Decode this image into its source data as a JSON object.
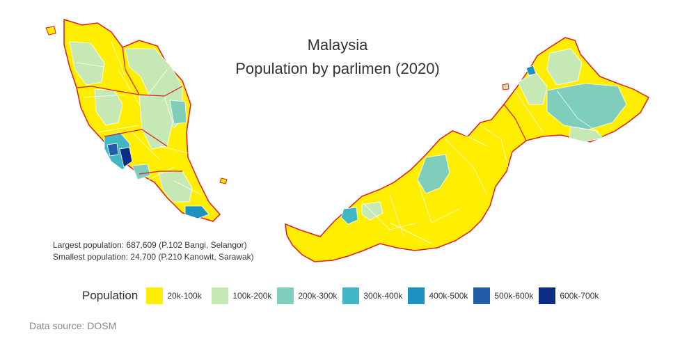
{
  "title": {
    "line1": "Malaysia",
    "line2": "Population by parlimen (2020)"
  },
  "stats": {
    "largest": "Largest population: 687,609 (P.102 Bangi, Selangor)",
    "smallest": "Smallest population: 24,700 (P.210 Kanowit, Sarawak)"
  },
  "legend": {
    "title": "Population",
    "items": [
      {
        "label": "20k-100k",
        "color": "#ffee00"
      },
      {
        "label": "100k-200k",
        "color": "#c6e8b4"
      },
      {
        "label": "200k-300k",
        "color": "#7fcdbb"
      },
      {
        "label": "300k-400k",
        "color": "#41b6c4"
      },
      {
        "label": "400k-500k",
        "color": "#1d91c0"
      },
      {
        "label": "500k-600k",
        "color": "#225ea8"
      },
      {
        "label": "600k-700k",
        "color": "#0c2c84"
      }
    ]
  },
  "source": "Data source: DOSM",
  "colors": {
    "state_border": "#e31a1c",
    "district_border": "#ffffff"
  }
}
